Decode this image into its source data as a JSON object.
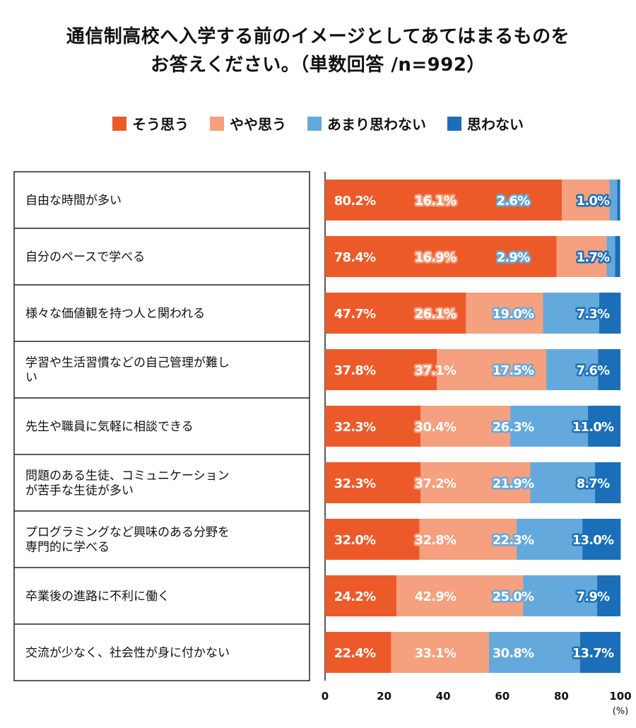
{
  "chart_data": {
    "type": "bar",
    "orientation": "horizontal-stacked-100",
    "title_lines": [
      "通信制高校へ入学する前のイメージとしてあてはまるものを",
      "お答えください。（単数回答 /n=992）"
    ],
    "unit_label": "(%)",
    "xlim": [
      0,
      100
    ],
    "ticks": [
      0,
      20,
      40,
      60,
      80,
      100
    ],
    "grid": false,
    "legend_position": "top",
    "categories": [
      [
        "自由な時間が多い"
      ],
      [
        "自分のペースで学べる"
      ],
      [
        "様々な価値観を持つ人と関われる"
      ],
      [
        "学習や生活習慣などの自己管理が難し",
        "い"
      ],
      [
        "先生や職員に気軽に相談できる"
      ],
      [
        "問題のある生徒、コミュニケーション",
        "が苦手な生徒が多い"
      ],
      [
        "プログラミングなど興味のある分野を",
        "専門的に学べる"
      ],
      [
        "卒業後の進路に不利に働く"
      ],
      [
        "交流が少なく、社会性が身に付かない"
      ]
    ],
    "series": [
      {
        "name": "そう思う",
        "color": "#ED5A2A",
        "values": [
          80.2,
          78.4,
          47.7,
          37.8,
          32.3,
          32.3,
          32.0,
          24.2,
          22.4
        ],
        "labels": [
          "80.2%",
          "78.4%",
          "47.7%",
          "37.8%",
          "32.3%",
          "32.3%",
          "32.0%",
          "24.2%",
          "22.4%"
        ]
      },
      {
        "name": "やや思う",
        "color": "#F5A07E",
        "values": [
          16.1,
          16.9,
          26.1,
          37.1,
          30.4,
          37.2,
          32.8,
          42.9,
          33.1
        ],
        "labels": [
          "16.1%",
          "16.9%",
          "26.1%",
          "37.1%",
          "30.4%",
          "37.2%",
          "32.8%",
          "42.9%",
          "33.1%"
        ]
      },
      {
        "name": "あまり思わない",
        "color": "#64A9DC",
        "values": [
          2.6,
          2.9,
          19.0,
          17.5,
          26.3,
          21.9,
          22.3,
          25.0,
          30.8
        ],
        "labels": [
          "2.6%",
          "2.9%",
          "19.0%",
          "17.5%",
          "26.3%",
          "21.9%",
          "22.3%",
          "25.0%",
          "30.8%"
        ]
      },
      {
        "name": "思わない",
        "color": "#1B6EB8",
        "values": [
          1.0,
          1.7,
          7.3,
          7.6,
          11.0,
          8.7,
          13.0,
          7.9,
          13.7
        ],
        "labels": [
          "1.0%",
          "1.7%",
          "7.3%",
          "7.6%",
          "11.0%",
          "8.7%",
          "13.0%",
          "7.9%",
          "13.7%"
        ]
      }
    ]
  }
}
